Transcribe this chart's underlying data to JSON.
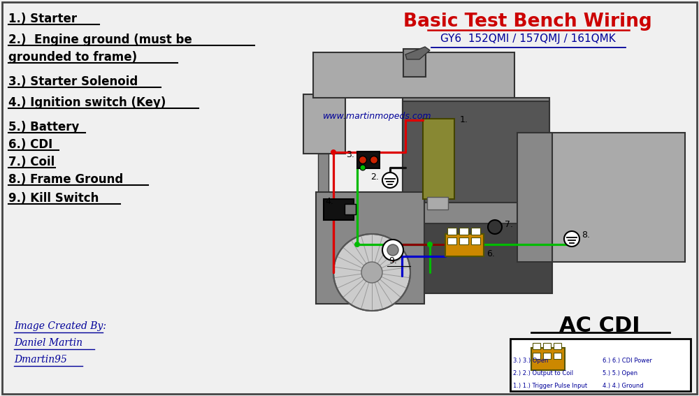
{
  "title": "Basic Test Bench Wiring",
  "subtitle": "GY6  152QMI / 157QMJ / 161QMK",
  "website": "www.martinmopeds.com",
  "ac_cdi_label": "AC CDI",
  "legend_items": [
    "1.) Starter",
    "2.)  Engine ground (must be",
    "grounded to frame)",
    "3.) Starter Solenoid",
    "4.) Ignition switch (Key)",
    "5.) Battery",
    "6.) CDI",
    "7.) Coil",
    "8.) Frame Ground",
    "9.) Kill Switch"
  ],
  "credit_line1": "Image Created By:",
  "credit_line2": "Daniel Martin",
  "credit_line3": "Dmartin95",
  "cdi_pin_labels_left": [
    "1.) Trigger Pulse Input",
    "2.) Output to Coil",
    "3.) Open"
  ],
  "cdi_pin_labels_right": [
    "4.) Ground",
    "5.) Open",
    "6.) CDI Power"
  ],
  "bg_color": "#f0f0f0",
  "title_color": "#cc0000",
  "subtitle_color": "#000099",
  "legend_color": "#000000",
  "credit_color": "#000099",
  "wire_red": "#dd0000",
  "wire_green": "#00bb00",
  "wire_blue": "#0000cc",
  "wire_black": "#111111",
  "wire_darkred": "#880000",
  "engine_gray1": "#aaaaaa",
  "engine_gray2": "#888888",
  "engine_gray3": "#555555",
  "engine_dark": "#333333",
  "coil_color": "#888833",
  "solenoid_red": "#cc2200",
  "cdi_gold": "#cc8800",
  "battery_bg": "#f8f8f8",
  "battery_border": "#111111"
}
